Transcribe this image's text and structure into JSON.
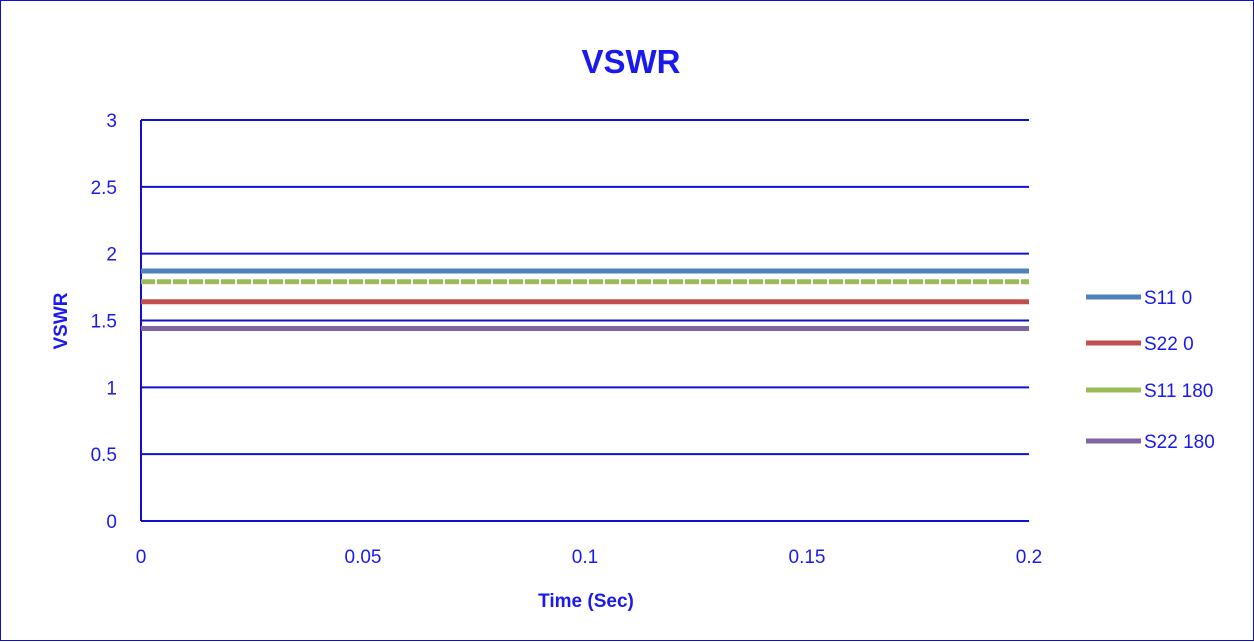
{
  "chart_data": {
    "type": "line",
    "title": "VSWR",
    "xlabel": "Time (Sec)",
    "ylabel": "VSWR",
    "xlim": [
      0,
      0.2
    ],
    "ylim": [
      0,
      3
    ],
    "x_ticks": [
      "0",
      "0.05",
      "0.1",
      "0.15",
      "0.2"
    ],
    "y_ticks": [
      "0",
      "0.5",
      "1",
      "1.5",
      "2",
      "2.5",
      "3"
    ],
    "grid": "horizontal major gridlines",
    "legend_position": "right",
    "series": [
      {
        "name": "S11 0",
        "color": "#4f81bd",
        "x": [
          0,
          0.062,
          0.2
        ],
        "y": [
          1.87,
          1.87,
          1.87
        ]
      },
      {
        "name": "S22 0",
        "color": "#c0504d",
        "x": [
          0,
          0.112,
          0.2
        ],
        "y": [
          1.64,
          1.64,
          1.64
        ]
      },
      {
        "name": "S11 180",
        "color": "#9bbb59",
        "x": [
          0,
          0.05,
          0.1,
          0.15,
          0.2
        ],
        "y": [
          1.79,
          1.79,
          1.79,
          1.79,
          1.79
        ]
      },
      {
        "name": "S22 180",
        "color": "#8064a2",
        "x": [
          0,
          0.191,
          0.2
        ],
        "y": [
          1.44,
          1.44,
          1.44
        ]
      }
    ]
  }
}
